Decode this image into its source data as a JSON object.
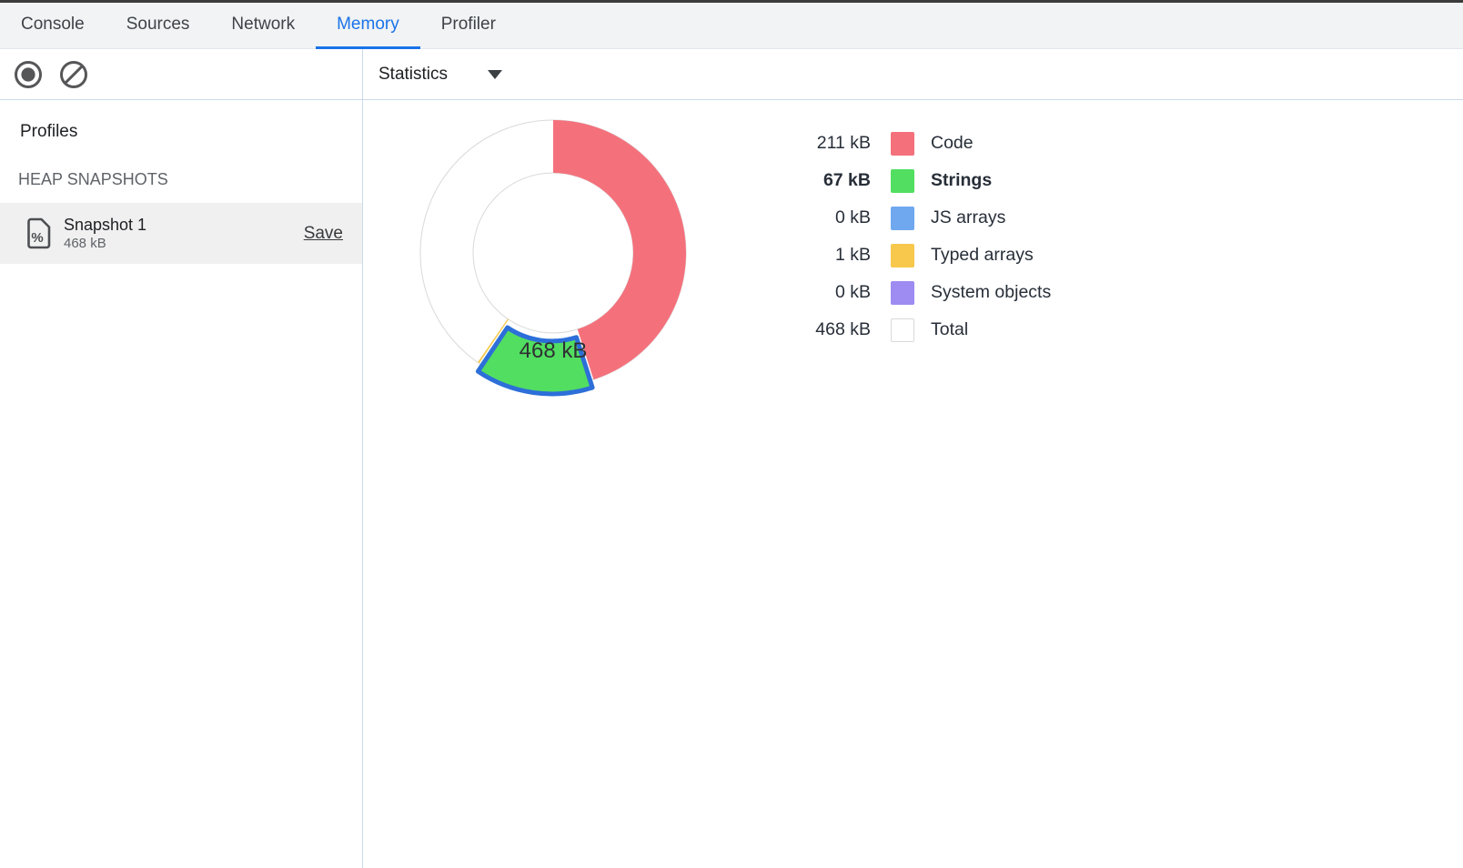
{
  "tabs": {
    "items": [
      {
        "label": "Console"
      },
      {
        "label": "Sources"
      },
      {
        "label": "Network"
      },
      {
        "label": "Memory"
      },
      {
        "label": "Profiler"
      }
    ],
    "active": "Memory",
    "active_color": "#1a73e8"
  },
  "toolbar": {
    "record_icon": "record-icon",
    "clear_icon": "clear-icon",
    "perspective_label": "Statistics"
  },
  "sidebar": {
    "profiles_title": "Profiles",
    "section_title": "HEAP SNAPSHOTS",
    "snapshot": {
      "name": "Snapshot 1",
      "size": "468 kB",
      "save_label": "Save",
      "icon": "heap-snapshot-file-icon"
    }
  },
  "chart_data": {
    "type": "pie",
    "style": "donut",
    "center_label": "468 kB",
    "total_kb": 468,
    "unit": "kB",
    "outer_radius": 146,
    "inner_radius": 88,
    "start_angle_deg": 0,
    "direction": "clockwise",
    "selection_color": "#2d6fd9",
    "outline_color": "#d9d9d9",
    "legend_position": "right",
    "slices": [
      {
        "label": "Code",
        "value_kb": 211,
        "value_label": "211 kB",
        "color": "#f4717c",
        "selected": false
      },
      {
        "label": "Strings",
        "value_kb": 67,
        "value_label": "67 kB",
        "color": "#52de61",
        "selected": true
      },
      {
        "label": "JS arrays",
        "value_kb": 0,
        "value_label": "0 kB",
        "color": "#6fa8ef",
        "selected": false
      },
      {
        "label": "Typed arrays",
        "value_kb": 1,
        "value_label": "1 kB",
        "color": "#f8c84c",
        "selected": false
      },
      {
        "label": "System objects",
        "value_kb": 0,
        "value_label": "0 kB",
        "color": "#9e8cf3",
        "selected": false
      }
    ],
    "total_row": {
      "label": "Total",
      "value_kb": 468,
      "value_label": "468 kB",
      "color": "#ffffff"
    }
  }
}
